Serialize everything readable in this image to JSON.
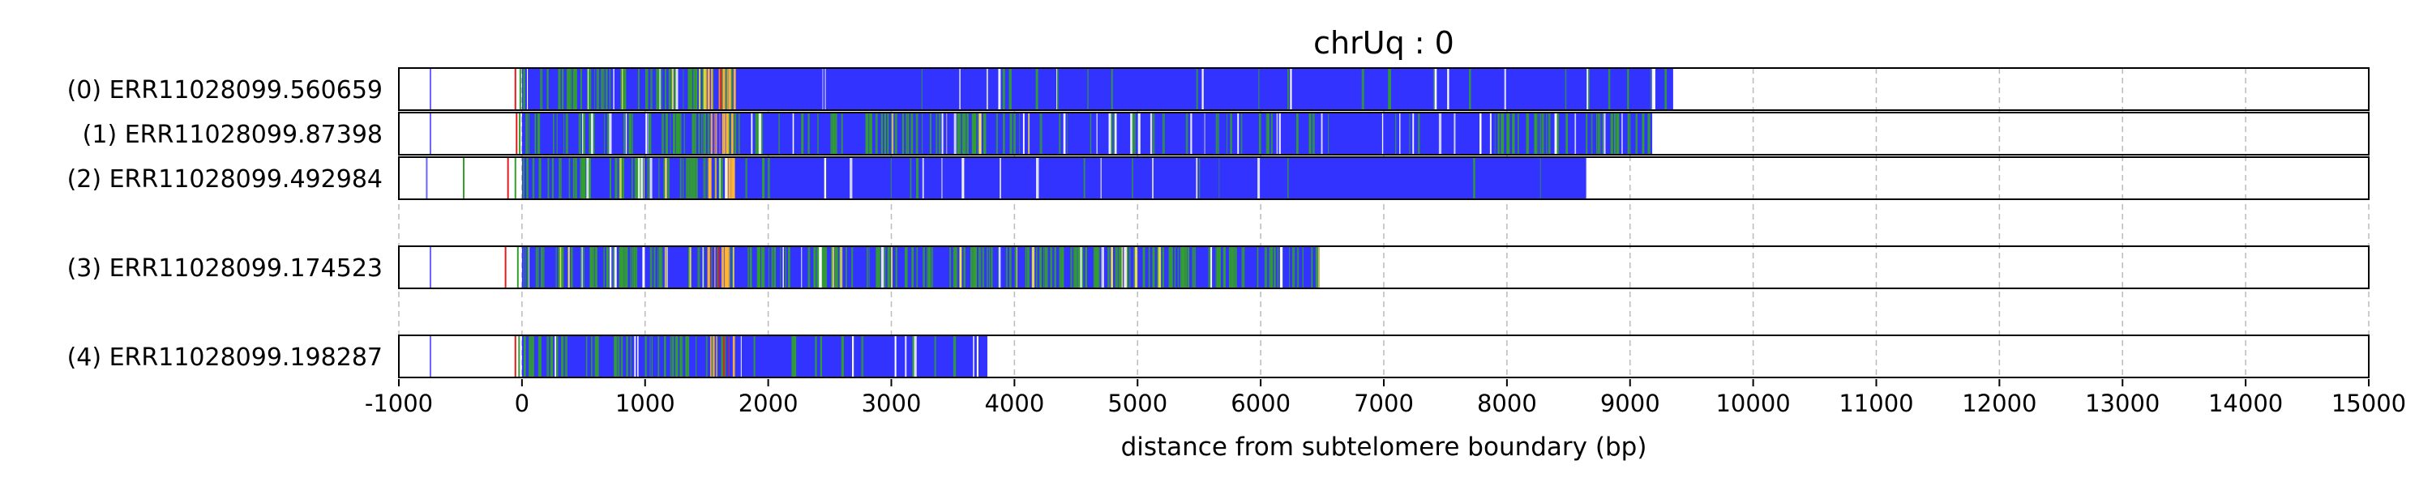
{
  "chart_data": {
    "type": "bar",
    "title": "chrUq : 0",
    "xlabel": "distance from subtelomere boundary (bp)",
    "ylabel": "",
    "xlim": [
      -1000,
      15000
    ],
    "xticks": [
      -1000,
      0,
      1000,
      2000,
      3000,
      4000,
      5000,
      6000,
      7000,
      8000,
      9000,
      10000,
      11000,
      12000,
      13000,
      14000,
      15000
    ],
    "xtick_labels": [
      "-1000",
      "0",
      "1000",
      "2000",
      "3000",
      "4000",
      "5000",
      "6000",
      "7000",
      "8000",
      "9000",
      "10000",
      "11000",
      "12000",
      "13000",
      "14000",
      "15000"
    ],
    "grid": "vertical dashed",
    "reads": [
      {
        "label": "(0) ERR11028099.560659",
        "start": 0,
        "end": 9350,
        "group": 0
      },
      {
        "label": "(1) ERR11028099.87398",
        "start": 0,
        "end": 9180,
        "group": 0
      },
      {
        "label": "(2) ERR11028099.492984",
        "start": 0,
        "end": 8650,
        "group": 0
      },
      {
        "label": "(3) ERR11028099.174523",
        "start": 0,
        "end": 6480,
        "group": 1
      },
      {
        "label": "(4) ERR11028099.198287",
        "start": 0,
        "end": 3780,
        "group": 2
      }
    ],
    "colors": {
      "main": "#3333ff",
      "green": "#33a02c",
      "orange": "#ffb733",
      "yellow": "#f0e442",
      "red": "#e31a1c",
      "purple": "#9b59b6",
      "white": "#ffffff",
      "grid": "#bbbbbb"
    },
    "annotations": [
      {
        "read": 0,
        "x": -750,
        "color": "#6666ff"
      },
      {
        "read": 1,
        "x": -750,
        "color": "#6666ff"
      },
      {
        "read": 2,
        "x": -780,
        "color": "#6666ff"
      },
      {
        "read": 3,
        "x": -750,
        "color": "#6666ff"
      },
      {
        "read": 4,
        "x": -750,
        "color": "#6666ff"
      },
      {
        "read": 2,
        "x": -480,
        "color": "#33a02c"
      },
      {
        "read": 0,
        "x": -60,
        "color": "#e31a1c"
      },
      {
        "read": 1,
        "x": -50,
        "color": "#e31a1c"
      },
      {
        "read": 2,
        "x": -120,
        "color": "#e31a1c"
      },
      {
        "read": 3,
        "x": -140,
        "color": "#e31a1c"
      },
      {
        "read": 4,
        "x": -60,
        "color": "#e31a1c"
      },
      {
        "read": 0,
        "x": -20,
        "color": "#33a02c"
      },
      {
        "read": 1,
        "x": -25,
        "color": "#33a02c"
      },
      {
        "read": 2,
        "x": -60,
        "color": "#33a02c"
      },
      {
        "read": 3,
        "x": -40,
        "color": "#33a02c"
      },
      {
        "read": 4,
        "x": -30,
        "color": "#33a02c"
      }
    ],
    "segments": [
      {
        "read": 0,
        "start": 0,
        "end": 1700,
        "color": "#33a02c",
        "density": 0.55
      },
      {
        "read": 0,
        "start": 1700,
        "end": 9350,
        "color": "#33a02c",
        "density": 0.04
      },
      {
        "read": 0,
        "start": 1480,
        "end": 1720,
        "color": "#ffb733",
        "density": 0.7
      },
      {
        "read": 0,
        "start": 600,
        "end": 1500,
        "color": "#f0e442",
        "density": 0.06
      },
      {
        "read": 0,
        "start": 1500,
        "end": 1650,
        "color": "#e31a1c",
        "density": 0.1
      },
      {
        "read": 0,
        "start": 0,
        "end": 9350,
        "color": "#ffffff",
        "density": 0.03
      },
      {
        "read": 1,
        "start": 0,
        "end": 4000,
        "color": "#33a02c",
        "density": 0.4
      },
      {
        "read": 1,
        "start": 4000,
        "end": 7500,
        "color": "#33a02c",
        "density": 0.12
      },
      {
        "read": 1,
        "start": 7900,
        "end": 9180,
        "color": "#33a02c",
        "density": 0.45
      },
      {
        "read": 1,
        "start": 1500,
        "end": 1720,
        "color": "#ffb733",
        "density": 0.5
      },
      {
        "read": 1,
        "start": 1520,
        "end": 1620,
        "color": "#9b59b6",
        "density": 0.3
      },
      {
        "read": 1,
        "start": 0,
        "end": 9180,
        "color": "#ffffff",
        "density": 0.06
      },
      {
        "read": 1,
        "start": 3000,
        "end": 4200,
        "color": "#f0e442",
        "density": 0.05
      },
      {
        "read": 2,
        "start": 0,
        "end": 1700,
        "color": "#33a02c",
        "density": 0.5
      },
      {
        "read": 2,
        "start": 1700,
        "end": 8650,
        "color": "#33a02c",
        "density": 0.03
      },
      {
        "read": 2,
        "start": 1480,
        "end": 1720,
        "color": "#ffb733",
        "density": 0.7
      },
      {
        "read": 2,
        "start": 0,
        "end": 8650,
        "color": "#ffffff",
        "density": 0.03
      },
      {
        "read": 2,
        "start": 600,
        "end": 1400,
        "color": "#f0e442",
        "density": 0.05
      },
      {
        "read": 3,
        "start": 0,
        "end": 6480,
        "color": "#33a02c",
        "density": 0.5
      },
      {
        "read": 3,
        "start": 1500,
        "end": 1720,
        "color": "#ffb733",
        "density": 0.45
      },
      {
        "read": 3,
        "start": 0,
        "end": 6480,
        "color": "#f0e442",
        "density": 0.04
      },
      {
        "read": 3,
        "start": 1520,
        "end": 1650,
        "color": "#e31a1c",
        "density": 0.2
      },
      {
        "read": 3,
        "start": 0,
        "end": 6480,
        "color": "#ffffff",
        "density": 0.04
      },
      {
        "read": 4,
        "start": 0,
        "end": 1700,
        "color": "#33a02c",
        "density": 0.45
      },
      {
        "read": 4,
        "start": 1700,
        "end": 3780,
        "color": "#33a02c",
        "density": 0.08
      },
      {
        "read": 4,
        "start": 1500,
        "end": 1720,
        "color": "#ffb733",
        "density": 0.35
      },
      {
        "read": 4,
        "start": 1550,
        "end": 1680,
        "color": "#e31a1c",
        "density": 0.2
      },
      {
        "read": 4,
        "start": 0,
        "end": 3780,
        "color": "#ffffff",
        "density": 0.04
      }
    ]
  }
}
